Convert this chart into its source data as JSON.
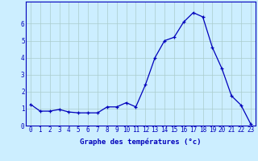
{
  "x": [
    0,
    1,
    2,
    3,
    4,
    5,
    6,
    7,
    8,
    9,
    10,
    11,
    12,
    13,
    14,
    15,
    16,
    17,
    18,
    19,
    20,
    21,
    22,
    23
  ],
  "y": [
    1.25,
    0.85,
    0.85,
    0.95,
    0.8,
    0.75,
    0.75,
    0.75,
    1.1,
    1.1,
    1.35,
    1.1,
    2.4,
    4.0,
    5.0,
    5.2,
    6.1,
    6.65,
    6.4,
    4.6,
    3.35,
    1.75,
    1.2,
    0.1
  ],
  "line_color": "#0000bb",
  "marker_color": "#0000bb",
  "bg_color": "#cceeff",
  "grid_color": "#aacccc",
  "xlabel": "Graphe des températures (°c)",
  "xlim_min": -0.5,
  "xlim_max": 23.5,
  "ylim_min": 0,
  "ylim_max": 7.3,
  "yticks": [
    0,
    1,
    2,
    3,
    4,
    5,
    6
  ],
  "xticks": [
    0,
    1,
    2,
    3,
    4,
    5,
    6,
    7,
    8,
    9,
    10,
    11,
    12,
    13,
    14,
    15,
    16,
    17,
    18,
    19,
    20,
    21,
    22,
    23
  ],
  "axis_label_fontsize": 6.5,
  "tick_fontsize": 5.5
}
